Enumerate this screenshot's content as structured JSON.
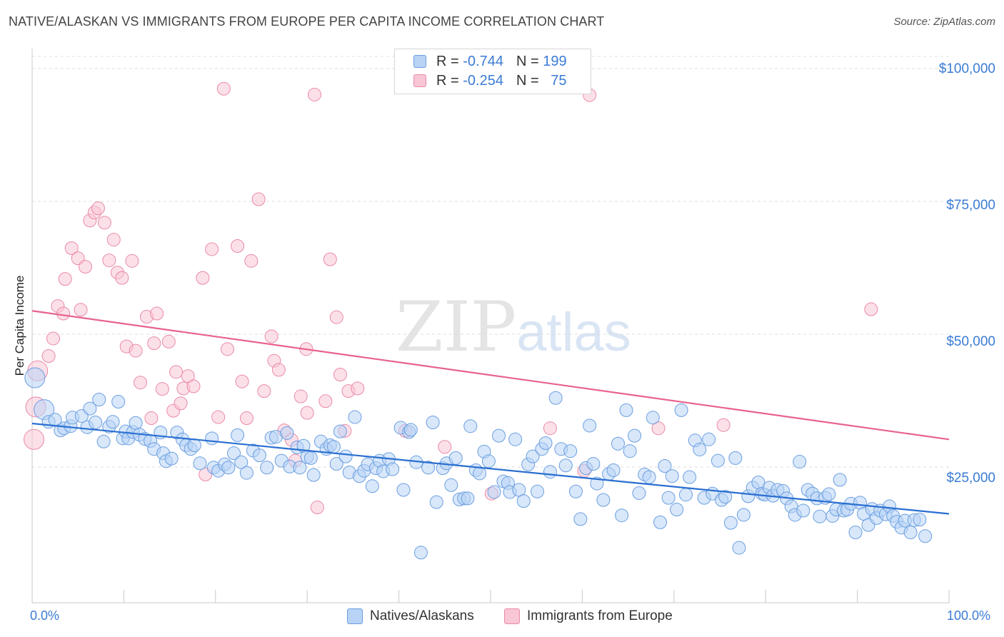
{
  "header": {
    "title": "NATIVE/ALASKAN VS IMMIGRANTS FROM EUROPE PER CAPITA INCOME CORRELATION CHART",
    "source": "Source: ZipAtlas.com"
  },
  "watermark": {
    "zip": "ZIP",
    "atlas": "atlas"
  },
  "legend_top": [
    {
      "r_label": "R =",
      "r_value": "-0.744",
      "n_label": "N =",
      "n_value": "199"
    },
    {
      "r_label": "R =",
      "r_value": "-0.254",
      "n_label": "N =",
      "n_value": "75"
    }
  ],
  "legend_bottom": [
    "Natives/Alaskans",
    "Immigrants from Europe"
  ],
  "colors": {
    "blue": "#3a7bd5",
    "pink": "#e8628e",
    "blue_fill": "#b8d3f5",
    "pink_fill": "#f9c6d5"
  },
  "chart_data": {
    "type": "scatter",
    "title": "NATIVE/ALASKAN VS IMMIGRANTS FROM EUROPE PER CAPITA INCOME CORRELATION CHART",
    "xlabel": "",
    "ylabel": "Per Capita Income",
    "xlim": [
      0,
      100
    ],
    "ylim": [
      0,
      105000
    ],
    "x_tick_labels": [
      "0.0%",
      "100.0%"
    ],
    "y_ticks": [
      25000,
      50000,
      75000,
      100000
    ],
    "y_tick_labels": [
      "$25,000",
      "$50,000",
      "$75,000",
      "$100,000"
    ],
    "grid": "horizontal dashed",
    "legend_placement": "top-center and bottom",
    "series": [
      {
        "name": "Natives/Alaskans",
        "color": "#3a7bd5",
        "r": -0.744,
        "n": 199,
        "trend": {
          "x": [
            0,
            100
          ],
          "y": [
            33200,
            16200
          ]
        },
        "points": [
          [
            0.3,
            41800
          ],
          [
            1.3,
            35800
          ],
          [
            1.8,
            33500
          ],
          [
            2.5,
            33900
          ],
          [
            3.1,
            31900
          ],
          [
            3.5,
            32300
          ],
          [
            4.2,
            32700
          ],
          [
            4.4,
            34300
          ],
          [
            5.4,
            34600
          ],
          [
            6,
            32500
          ],
          [
            6.3,
            36000
          ],
          [
            6.9,
            33400
          ],
          [
            7.3,
            37700
          ],
          [
            7.8,
            29800
          ],
          [
            8.4,
            32600
          ],
          [
            8.8,
            33500
          ],
          [
            9.4,
            37300
          ],
          [
            9.9,
            30400
          ],
          [
            10.2,
            31700
          ],
          [
            10.5,
            30400
          ],
          [
            11,
            31600
          ],
          [
            11.3,
            33300
          ],
          [
            11.7,
            31100
          ],
          [
            12.3,
            30300
          ],
          [
            12.9,
            29900
          ],
          [
            13.3,
            28400
          ],
          [
            14,
            31500
          ],
          [
            14.3,
            27600
          ],
          [
            14.6,
            26100
          ],
          [
            15.2,
            26600
          ],
          [
            15.8,
            31500
          ],
          [
            16.4,
            30200
          ],
          [
            16.8,
            29100
          ],
          [
            17.3,
            28400
          ],
          [
            17.7,
            29100
          ],
          [
            18.3,
            25700
          ],
          [
            19.6,
            30400
          ],
          [
            19.8,
            24900
          ],
          [
            20.3,
            24300
          ],
          [
            21,
            25500
          ],
          [
            21.4,
            24900
          ],
          [
            22,
            27600
          ],
          [
            22.4,
            31000
          ],
          [
            22.8,
            25900
          ],
          [
            23.4,
            23900
          ],
          [
            24.1,
            28100
          ],
          [
            24.8,
            27200
          ],
          [
            25.6,
            24900
          ],
          [
            26.1,
            30500
          ],
          [
            26.6,
            30700
          ],
          [
            27.2,
            26200
          ],
          [
            27.8,
            31400
          ],
          [
            28.1,
            25100
          ],
          [
            28.9,
            28700
          ],
          [
            29.2,
            24900
          ],
          [
            29.6,
            29000
          ],
          [
            30,
            26900
          ],
          [
            30.4,
            26700
          ],
          [
            30.7,
            23500
          ],
          [
            31.5,
            29800
          ],
          [
            32.1,
            28400
          ],
          [
            32.5,
            29100
          ],
          [
            32.9,
            28800
          ],
          [
            33.2,
            25600
          ],
          [
            33.6,
            31700
          ],
          [
            34.2,
            27000
          ],
          [
            34.6,
            24000
          ],
          [
            35.2,
            34400
          ],
          [
            35.7,
            23300
          ],
          [
            36.2,
            24300
          ],
          [
            36.6,
            25500
          ],
          [
            37.1,
            21400
          ],
          [
            37.5,
            24800
          ],
          [
            37.9,
            26200
          ],
          [
            38.3,
            24200
          ],
          [
            38.9,
            26500
          ],
          [
            39.3,
            24600
          ],
          [
            40.2,
            32400
          ],
          [
            40.5,
            20700
          ],
          [
            41.1,
            31600
          ],
          [
            41.3,
            32000
          ],
          [
            41.9,
            25900
          ],
          [
            42.4,
            8900
          ],
          [
            43.2,
            24900
          ],
          [
            43.7,
            33400
          ],
          [
            44.1,
            18400
          ],
          [
            44.8,
            24800
          ],
          [
            45.2,
            25700
          ],
          [
            45.7,
            21600
          ],
          [
            46.2,
            26700
          ],
          [
            46.6,
            18900
          ],
          [
            47.1,
            19100
          ],
          [
            47.5,
            19100
          ],
          [
            47.8,
            32700
          ],
          [
            48.4,
            24400
          ],
          [
            48.8,
            23800
          ],
          [
            49.3,
            27900
          ],
          [
            49.8,
            26100
          ],
          [
            50.4,
            20300
          ],
          [
            50.9,
            30900
          ],
          [
            51.4,
            22300
          ],
          [
            51.9,
            22000
          ],
          [
            52.1,
            20300
          ],
          [
            52.7,
            30200
          ],
          [
            53.1,
            20700
          ],
          [
            53.6,
            18600
          ],
          [
            54.1,
            25500
          ],
          [
            54.6,
            27000
          ],
          [
            55.1,
            20400
          ],
          [
            55.6,
            28400
          ],
          [
            56,
            29500
          ],
          [
            56.5,
            24100
          ],
          [
            57.1,
            38000
          ],
          [
            57.7,
            28400
          ],
          [
            58.2,
            25300
          ],
          [
            58.7,
            28000
          ],
          [
            59.3,
            20400
          ],
          [
            59.8,
            15200
          ],
          [
            60.4,
            24800
          ],
          [
            60.8,
            32800
          ],
          [
            61.2,
            25600
          ],
          [
            61.6,
            21900
          ],
          [
            62.3,
            18800
          ],
          [
            62.9,
            23700
          ],
          [
            63.4,
            24400
          ],
          [
            63.9,
            29400
          ],
          [
            64.3,
            15900
          ],
          [
            64.8,
            35700
          ],
          [
            65.2,
            28000
          ],
          [
            65.7,
            30900
          ],
          [
            66.2,
            20100
          ],
          [
            66.8,
            23600
          ],
          [
            67.3,
            23100
          ],
          [
            67.7,
            34300
          ],
          [
            68.5,
            14600
          ],
          [
            69,
            25200
          ],
          [
            69.4,
            19200
          ],
          [
            69.8,
            23300
          ],
          [
            70.3,
            17000
          ],
          [
            70.8,
            35700
          ],
          [
            71.3,
            19800
          ],
          [
            71.7,
            23100
          ],
          [
            72.3,
            30000
          ],
          [
            72.8,
            28300
          ],
          [
            73.3,
            19200
          ],
          [
            73.8,
            30200
          ],
          [
            74.2,
            20000
          ],
          [
            74.8,
            26200
          ],
          [
            75.2,
            18800
          ],
          [
            75.6,
            19400
          ],
          [
            76.2,
            14500
          ],
          [
            76.7,
            26700
          ],
          [
            77.1,
            9800
          ],
          [
            77.6,
            16000
          ],
          [
            78.1,
            19500
          ],
          [
            78.6,
            21100
          ],
          [
            79.2,
            22100
          ],
          [
            79.6,
            20000
          ],
          [
            79.9,
            19800
          ],
          [
            80.4,
            21100
          ],
          [
            80.8,
            19600
          ],
          [
            81.3,
            20700
          ],
          [
            81.9,
            20500
          ],
          [
            82.3,
            19100
          ],
          [
            82.8,
            17600
          ],
          [
            83.2,
            16000
          ],
          [
            83.7,
            26000
          ],
          [
            84.1,
            16800
          ],
          [
            84.6,
            20700
          ],
          [
            85.1,
            20000
          ],
          [
            85.6,
            19100
          ],
          [
            85.9,
            15700
          ],
          [
            86.5,
            19200
          ],
          [
            86.9,
            19900
          ],
          [
            87.3,
            15800
          ],
          [
            87.7,
            17000
          ],
          [
            88.1,
            22600
          ],
          [
            88.5,
            16800
          ],
          [
            88.9,
            17000
          ],
          [
            89.3,
            18100
          ],
          [
            89.8,
            12700
          ],
          [
            90.3,
            18300
          ],
          [
            90.7,
            16200
          ],
          [
            91.2,
            14100
          ],
          [
            91.6,
            17100
          ],
          [
            92.1,
            15400
          ],
          [
            92.5,
            16800
          ],
          [
            93.1,
            16100
          ],
          [
            93.5,
            17600
          ],
          [
            93.9,
            15800
          ],
          [
            94.3,
            14700
          ],
          [
            94.8,
            13600
          ],
          [
            95.2,
            14900
          ],
          [
            95.8,
            12700
          ],
          [
            96.2,
            15000
          ],
          [
            96.8,
            15100
          ],
          [
            97.4,
            12000
          ]
        ]
      },
      {
        "name": "Immigrants from Europe",
        "color": "#e8628e",
        "r": -0.254,
        "n": 75,
        "trend": {
          "x": [
            0,
            100
          ],
          "y": [
            54400,
            30200
          ]
        },
        "points": [
          [
            0.2,
            30200
          ],
          [
            0.4,
            36300
          ],
          [
            0.6,
            43100
          ],
          [
            1.8,
            45900
          ],
          [
            2.3,
            49200
          ],
          [
            2.8,
            55300
          ],
          [
            3.4,
            53900
          ],
          [
            3.6,
            60400
          ],
          [
            4.3,
            66200
          ],
          [
            5,
            64300
          ],
          [
            5.3,
            54600
          ],
          [
            5.8,
            62700
          ],
          [
            6.3,
            71400
          ],
          [
            6.8,
            72900
          ],
          [
            7.2,
            73700
          ],
          [
            7.9,
            71000
          ],
          [
            8.4,
            63900
          ],
          [
            8.9,
            67800
          ],
          [
            9.3,
            61600
          ],
          [
            9.8,
            60600
          ],
          [
            10.3,
            47700
          ],
          [
            10.9,
            63800
          ],
          [
            11.3,
            46900
          ],
          [
            11.8,
            40900
          ],
          [
            12.5,
            53300
          ],
          [
            13,
            34200
          ],
          [
            13.3,
            48300
          ],
          [
            13.6,
            53900
          ],
          [
            14.2,
            39700
          ],
          [
            14.9,
            48600
          ],
          [
            15.4,
            35600
          ],
          [
            15.7,
            42900
          ],
          [
            16.2,
            37000
          ],
          [
            16.5,
            39800
          ],
          [
            17,
            42100
          ],
          [
            17.6,
            40200
          ],
          [
            18.6,
            60600
          ],
          [
            18.9,
            23600
          ],
          [
            19.6,
            66000
          ],
          [
            20.3,
            34400
          ],
          [
            20.9,
            96200
          ],
          [
            21.3,
            47200
          ],
          [
            22.4,
            66600
          ],
          [
            22.9,
            41100
          ],
          [
            23.4,
            34200
          ],
          [
            23.9,
            63800
          ],
          [
            24.7,
            75400
          ],
          [
            25.3,
            39300
          ],
          [
            26.1,
            49600
          ],
          [
            26.4,
            45000
          ],
          [
            26.9,
            43300
          ],
          [
            27.5,
            31900
          ],
          [
            28.3,
            30100
          ],
          [
            28.7,
            26200
          ],
          [
            29.3,
            38300
          ],
          [
            29.9,
            47200
          ],
          [
            30,
            35200
          ],
          [
            30.8,
            95100
          ],
          [
            31.1,
            17400
          ],
          [
            32,
            37400
          ],
          [
            32.5,
            64100
          ],
          [
            33.2,
            53200
          ],
          [
            33.6,
            42400
          ],
          [
            34.1,
            31800
          ],
          [
            34.5,
            39300
          ],
          [
            35.5,
            39800
          ],
          [
            40.7,
            31800
          ],
          [
            45,
            28800
          ],
          [
            50.1,
            20000
          ],
          [
            56.5,
            32300
          ],
          [
            60.2,
            24300
          ],
          [
            60.8,
            95000
          ],
          [
            68.3,
            32300
          ],
          [
            75.4,
            32900
          ],
          [
            91.5,
            54700
          ]
        ]
      }
    ]
  }
}
